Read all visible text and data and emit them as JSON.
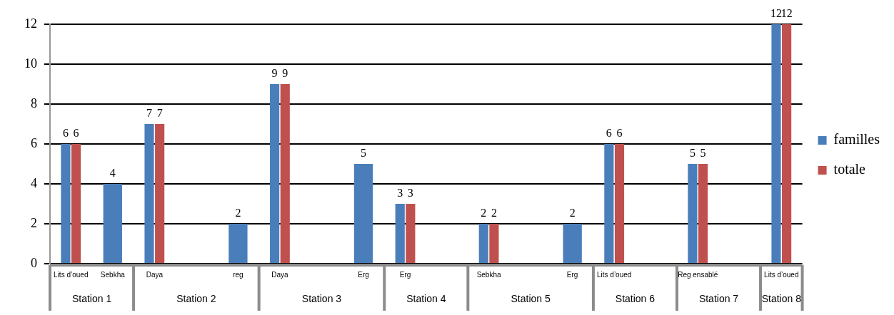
{
  "chart_data": {
    "type": "bar",
    "categories": [
      "Lits d’oued",
      "Sebkha",
      "Daya",
      null,
      "reg",
      "Daya",
      null,
      "Erg",
      "Erg",
      null,
      "Sebkha",
      null,
      "Erg",
      "Lits d’oued",
      null,
      "Reg ensablé",
      null,
      "Lits d’oued"
    ],
    "series": [
      {
        "name": "familles",
        "color": "#4a7ebb",
        "values": [
          6,
          4,
          7,
          null,
          2,
          9,
          null,
          5,
          3,
          null,
          2,
          null,
          2,
          6,
          null,
          5,
          null,
          12
        ]
      },
      {
        "name": "totale",
        "color": "#c0504d",
        "values": [
          6,
          null,
          7,
          null,
          null,
          9,
          null,
          null,
          3,
          null,
          2,
          null,
          null,
          6,
          null,
          5,
          null,
          12
        ]
      }
    ],
    "ylim": [
      0,
      12
    ],
    "yticks": [
      0,
      2,
      4,
      6,
      8,
      10,
      12
    ],
    "grid": "y",
    "legend": "right",
    "data_labels": true,
    "annotations": [
      "Station 1",
      "Station 2",
      "Station 3",
      "Station 4",
      "Station 5",
      "Station 6",
      "Station 7",
      "Station 8"
    ]
  }
}
